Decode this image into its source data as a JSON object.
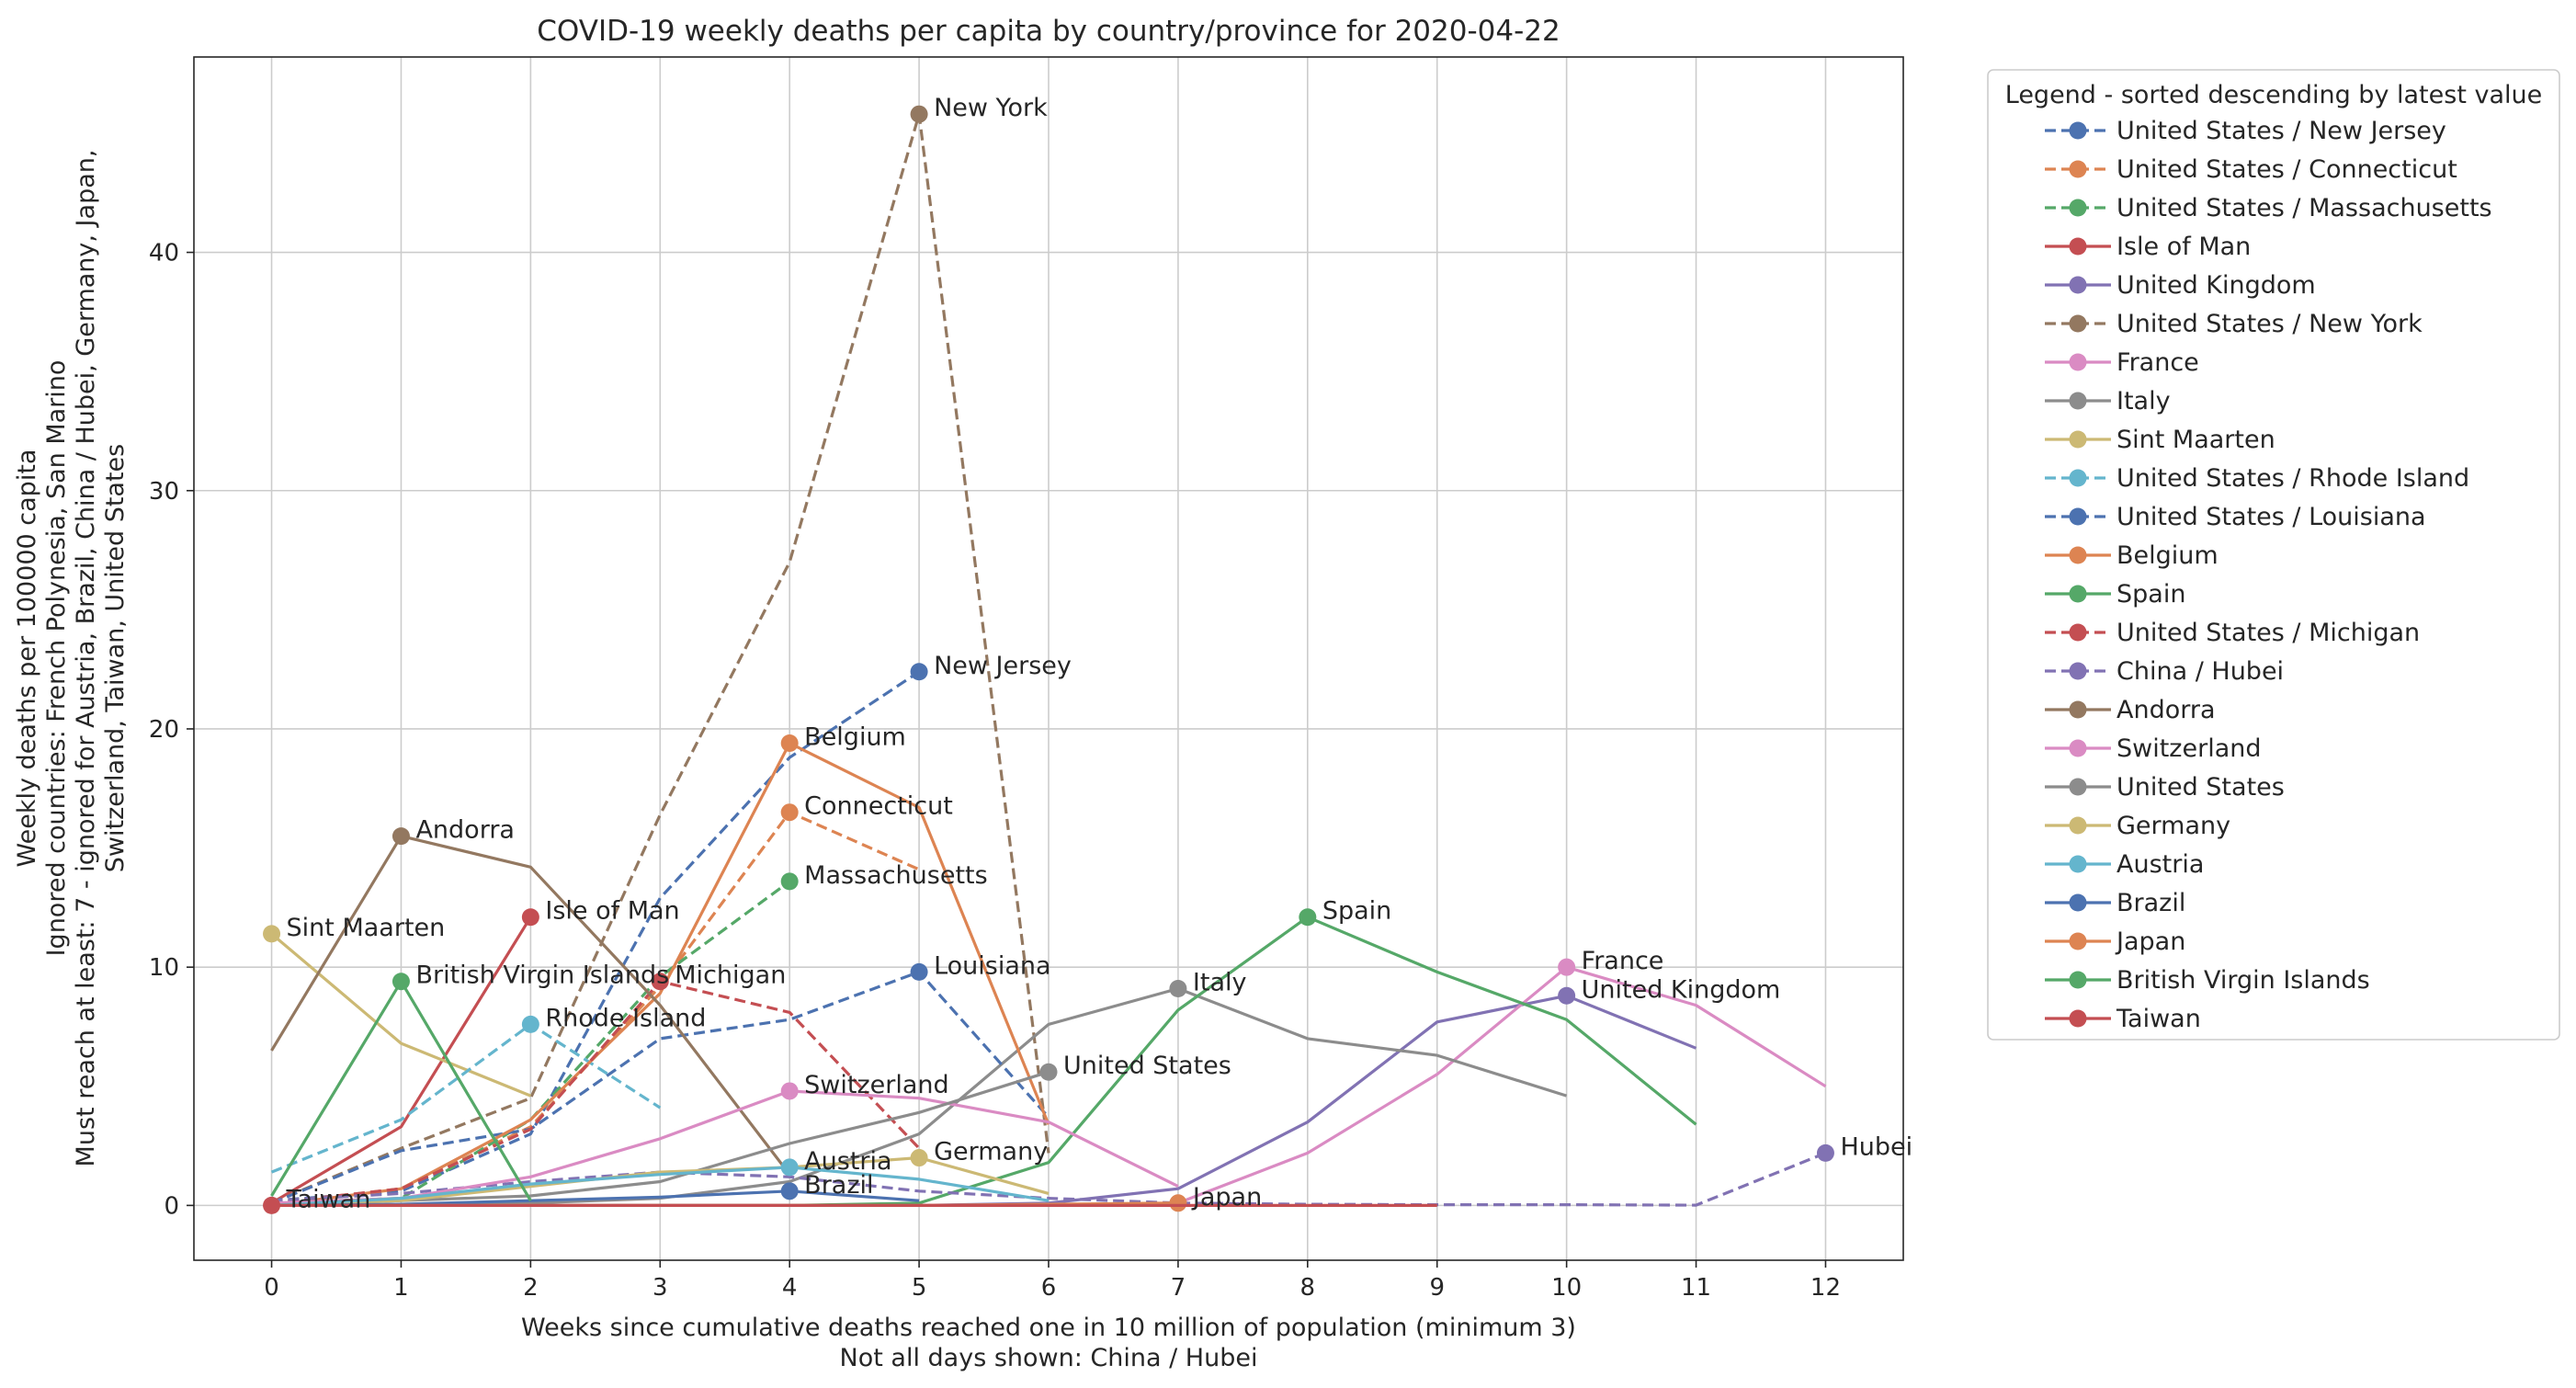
{
  "chart_data": {
    "type": "line",
    "title": "COVID-19 weekly deaths per capita by country/province for 2020-04-22",
    "xlabel": "Weeks since cumulative deaths reached one in 10 million of population (minimum 3)",
    "xlabel2": "Not all days shown: China / Hubei",
    "ylabel": [
      "Weekly deaths per 100000 capita",
      "Ignored countries: French Polynesia, San Marino",
      "Must reach at least: 7 - ignored for Austria, Brazil, China / Hubei, Germany, Japan,",
      "Switzerland, Taiwan, United States"
    ],
    "xlim": [
      -0.6,
      12.6
    ],
    "ylim": [
      -2.3,
      48.2
    ],
    "xticks": [
      0,
      1,
      2,
      3,
      4,
      5,
      6,
      7,
      8,
      9,
      10,
      11,
      12
    ],
    "yticks": [
      0,
      10,
      20,
      30,
      40
    ],
    "grid": true,
    "legend_title": "Legend - sorted descending by latest value",
    "legend_position": "outside-right",
    "series": [
      {
        "name": "United States / New Jersey",
        "label": "New Jersey",
        "color": "#4c72b0",
        "dashed": true,
        "x": [
          0,
          1,
          2,
          3,
          4,
          5
        ],
        "y": [
          0.2,
          0.6,
          3.0,
          12.9,
          18.8,
          22.4
        ]
      },
      {
        "name": "United States / Connecticut",
        "label": "Connecticut",
        "color": "#dd8452",
        "dashed": true,
        "x": [
          0,
          1,
          2,
          3,
          4,
          5
        ],
        "y": [
          0.1,
          0.7,
          3.3,
          9.2,
          16.5,
          14.1
        ]
      },
      {
        "name": "United States / Massachusetts",
        "label": "Massachusetts",
        "color": "#55a868",
        "dashed": true,
        "x": [
          0,
          1,
          2,
          3,
          4
        ],
        "y": [
          0.1,
          0.3,
          3.6,
          9.6,
          13.6
        ]
      },
      {
        "name": "Isle of Man",
        "label": "Isle of Man",
        "color": "#c44e52",
        "dashed": false,
        "x": [
          0,
          1,
          2
        ],
        "y": [
          0.1,
          3.3,
          12.1
        ]
      },
      {
        "name": "United Kingdom",
        "label": "United Kingdom",
        "color": "#8172b3",
        "dashed": false,
        "x": [
          0,
          1,
          2,
          3,
          4,
          5,
          6,
          7,
          8,
          9,
          10,
          11
        ],
        "y": [
          0.0,
          0.0,
          0.0,
          0.0,
          0.0,
          0.0,
          0.1,
          0.7,
          3.5,
          7.7,
          8.8,
          6.6
        ]
      },
      {
        "name": "United States / New York",
        "label": "New York",
        "color": "#937860",
        "dashed": true,
        "x": [
          0,
          1,
          2,
          3,
          4,
          5,
          6
        ],
        "y": [
          0.1,
          2.4,
          4.5,
          16.4,
          27.0,
          45.8,
          2.2
        ]
      },
      {
        "name": "France",
        "label": "France",
        "color": "#da8bc3",
        "dashed": false,
        "x": [
          0,
          1,
          2,
          3,
          4,
          5,
          6,
          7,
          8,
          9,
          10,
          11,
          12
        ],
        "y": [
          0.0,
          0.0,
          0.0,
          0.0,
          0.0,
          0.0,
          0.0,
          0.1,
          2.2,
          5.5,
          10.0,
          8.4,
          5.0
        ]
      },
      {
        "name": "Italy",
        "label": "Italy",
        "color": "#8c8c8c",
        "dashed": false,
        "x": [
          0,
          1,
          2,
          3,
          4,
          5,
          6,
          7,
          8,
          9,
          10
        ],
        "y": [
          0.0,
          0.0,
          0.1,
          0.3,
          1.0,
          3.0,
          7.6,
          9.1,
          7.0,
          6.3,
          4.6
        ]
      },
      {
        "name": "Sint Maarten",
        "label": "Sint Maarten",
        "color": "#ccb974",
        "dashed": false,
        "x": [
          0,
          1,
          2
        ],
        "y": [
          11.4,
          6.8,
          4.6
        ]
      },
      {
        "name": "United States / Rhode Island",
        "label": "Rhode Island",
        "color": "#64b5cd",
        "dashed": true,
        "x": [
          0,
          1,
          2,
          3
        ],
        "y": [
          1.4,
          3.6,
          7.6,
          4.1
        ]
      },
      {
        "name": "United States / Louisiana",
        "label": "Louisiana",
        "color": "#4c72b0",
        "dashed": true,
        "x": [
          0,
          1,
          2,
          3,
          4,
          5,
          6
        ],
        "y": [
          0.1,
          2.3,
          3.2,
          7.0,
          7.8,
          9.8,
          3.7
        ]
      },
      {
        "name": "Belgium",
        "label": "Belgium",
        "color": "#dd8452",
        "dashed": false,
        "x": [
          0,
          1,
          2,
          3,
          4,
          5,
          6
        ],
        "y": [
          0.0,
          0.7,
          3.6,
          8.9,
          19.4,
          16.7,
          3.4
        ]
      },
      {
        "name": "Spain",
        "label": "Spain",
        "color": "#55a868",
        "dashed": false,
        "x": [
          0,
          1,
          2,
          3,
          4,
          5,
          6,
          7,
          8,
          9,
          10,
          11
        ],
        "y": [
          0.0,
          0.0,
          0.0,
          0.0,
          0.0,
          0.1,
          1.8,
          8.2,
          12.1,
          9.8,
          7.8,
          3.4
        ]
      },
      {
        "name": "United States / Michigan",
        "label": "Michigan",
        "color": "#c44e52",
        "dashed": true,
        "x": [
          0,
          1,
          2,
          3,
          4,
          5
        ],
        "y": [
          0.1,
          0.7,
          3.2,
          9.4,
          8.1,
          2.4
        ]
      },
      {
        "name": "China / Hubei",
        "label": "Hubei",
        "color": "#8172b3",
        "dashed": true,
        "x": [
          0,
          1,
          2,
          3,
          4,
          5,
          6,
          7,
          8,
          9,
          10,
          11,
          12
        ],
        "y": [
          0.2,
          0.5,
          1.0,
          1.4,
          1.2,
          0.6,
          0.3,
          0.1,
          0.05,
          0.03,
          0.03,
          0.01,
          2.2
        ]
      },
      {
        "name": "Andorra",
        "label": "Andorra",
        "color": "#937860",
        "dashed": false,
        "x": [
          0,
          1,
          2,
          3,
          4
        ],
        "y": [
          6.5,
          15.5,
          14.2,
          8.4,
          1.3
        ]
      },
      {
        "name": "Switzerland",
        "label": "Switzerland",
        "color": "#da8bc3",
        "dashed": false,
        "x": [
          0,
          1,
          2,
          3,
          4,
          5,
          6,
          7
        ],
        "y": [
          0.1,
          0.3,
          1.2,
          2.8,
          4.8,
          4.5,
          3.5,
          0.8
        ]
      },
      {
        "name": "United States",
        "label": "United States",
        "color": "#8c8c8c",
        "dashed": false,
        "x": [
          0,
          1,
          2,
          3,
          4,
          5,
          6
        ],
        "y": [
          0.0,
          0.2,
          0.4,
          1.0,
          2.6,
          3.9,
          5.6
        ]
      },
      {
        "name": "Germany",
        "label": "Germany",
        "color": "#ccb974",
        "dashed": false,
        "x": [
          0,
          1,
          2,
          3,
          4,
          5,
          6
        ],
        "y": [
          0.0,
          0.2,
          0.8,
          1.4,
          1.6,
          2.0,
          0.5
        ]
      },
      {
        "name": "Austria",
        "label": "Austria",
        "color": "#64b5cd",
        "dashed": false,
        "x": [
          0,
          1,
          2,
          3,
          4,
          5,
          6
        ],
        "y": [
          0.0,
          0.3,
          0.9,
          1.3,
          1.6,
          1.1,
          0.2
        ]
      },
      {
        "name": "Brazil",
        "label": "Brazil",
        "color": "#4c72b0",
        "dashed": false,
        "x": [
          0,
          1,
          2,
          3,
          4,
          5
        ],
        "y": [
          0.0,
          0.05,
          0.2,
          0.35,
          0.6,
          0.2
        ]
      },
      {
        "name": "Japan",
        "label": "Japan",
        "color": "#dd8452",
        "dashed": false,
        "x": [
          0,
          1,
          2,
          3,
          4,
          5,
          6,
          7
        ],
        "y": [
          0.0,
          0.0,
          0.0,
          0.0,
          0.0,
          0.0,
          0.05,
          0.1
        ]
      },
      {
        "name": "British Virgin Islands",
        "label": "British Virgin Islands",
        "color": "#55a868",
        "dashed": false,
        "x": [
          0,
          1,
          2
        ],
        "y": [
          0.4,
          9.4,
          0.2
        ]
      },
      {
        "name": "Taiwan",
        "label": "Taiwan",
        "color": "#c44e52",
        "dashed": false,
        "x": [
          0,
          1,
          2,
          3,
          4,
          5,
          6,
          7,
          8,
          9
        ],
        "y": [
          0.0,
          0.0,
          0.0,
          0.0,
          0.0,
          0.0,
          0.0,
          0.0,
          0.0,
          0.0
        ]
      }
    ]
  }
}
